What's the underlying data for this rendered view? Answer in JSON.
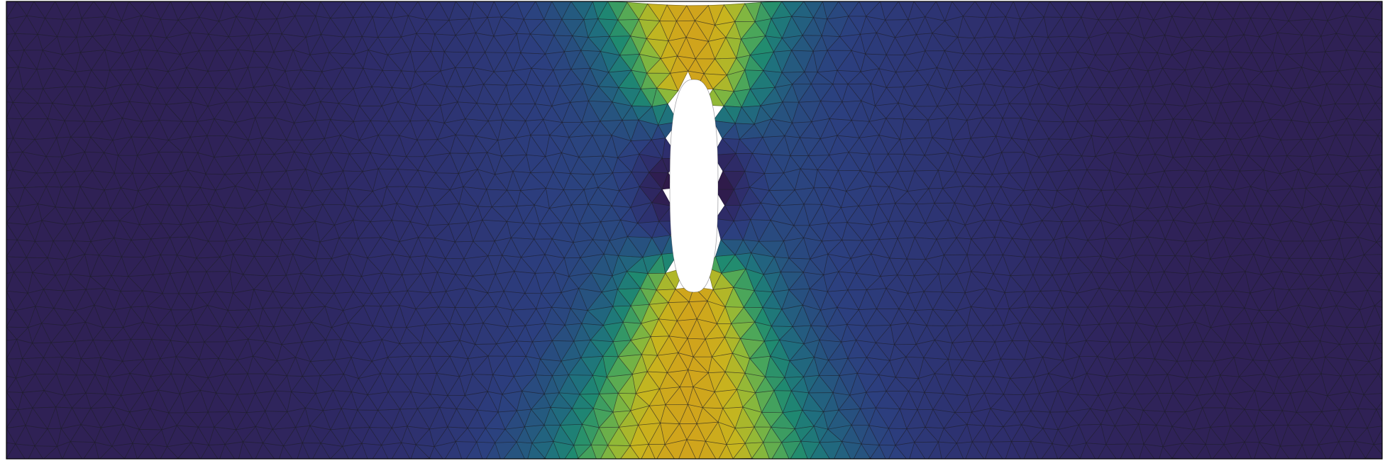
{
  "figure": {
    "kind": "finite element mesh with scalar field",
    "colormap": [
      "#30123b",
      "#2e2d6b",
      "#2c3f7f",
      "#25587f",
      "#1f6f7e",
      "#1f8a70",
      "#4ba65a",
      "#8cb93a",
      "#c7b51e",
      "#d0a41c"
    ],
    "background_color": "#ffffff",
    "mesh_edge_color": "#1e1e28",
    "border_color": "#000000",
    "hole_color": "#ffffff",
    "labels_shown": false
  }
}
